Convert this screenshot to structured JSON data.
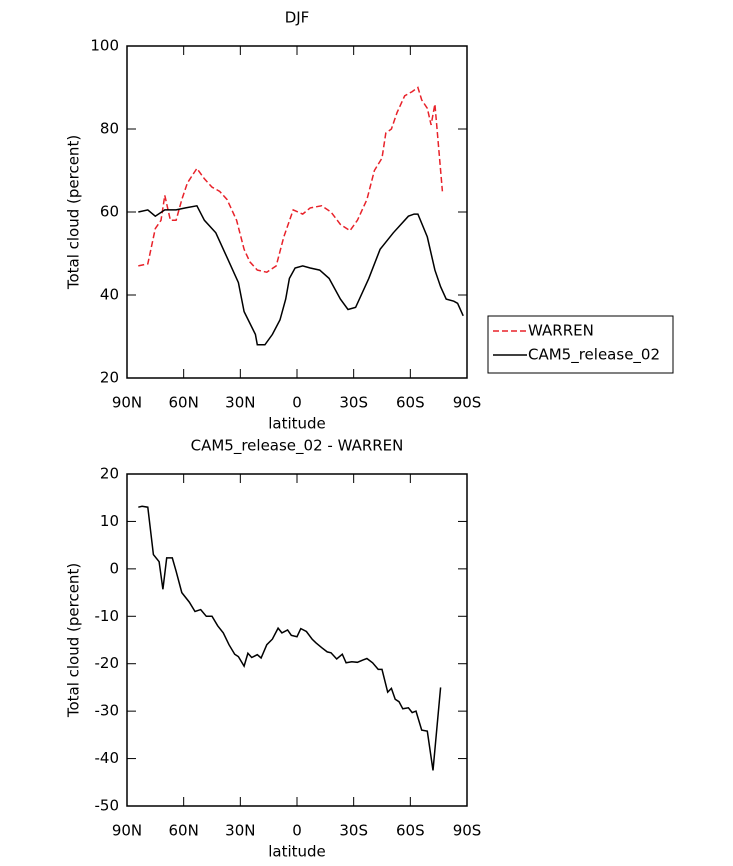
{
  "chart_data": [
    {
      "type": "line",
      "title": "DJF",
      "xlabel": "latitude",
      "ylabel": "Total cloud (percent)",
      "xlim": [
        90,
        -90
      ],
      "ylim": [
        20,
        100
      ],
      "xticks": [
        {
          "value": 90,
          "label": "90N"
        },
        {
          "value": 60,
          "label": "60N"
        },
        {
          "value": 30,
          "label": "30N"
        },
        0,
        {
          "value": -30,
          "label": "30S"
        },
        {
          "value": -60,
          "label": "60S"
        },
        {
          "value": -90,
          "label": "90S"
        }
      ],
      "yticks": [
        20,
        40,
        60,
        80,
        100
      ],
      "legend": "right",
      "series": [
        {
          "name": "WARREN",
          "color": "#e8222a",
          "dashed": true,
          "x": [
            84,
            79,
            75,
            72,
            70,
            67,
            64,
            61,
            58,
            53,
            49,
            45,
            41,
            37,
            32,
            28,
            25,
            21,
            16,
            11,
            7,
            2,
            -3,
            -7,
            -13,
            -18,
            -23,
            -28,
            -32,
            -37,
            -41,
            -45,
            -47,
            -50,
            -53,
            -57,
            -61,
            -64,
            -66,
            -69,
            -71,
            -73,
            -77
          ],
          "values": [
            47,
            47.5,
            56,
            58,
            64,
            58,
            58,
            63,
            67,
            70.5,
            68,
            66,
            65,
            63,
            58,
            51,
            48,
            46,
            45.5,
            47,
            54,
            60.5,
            59.5,
            61,
            61.5,
            60,
            57,
            55.5,
            58,
            63,
            70,
            73,
            79,
            80,
            84,
            88,
            89,
            90,
            87,
            85,
            81,
            86,
            65
          ]
        },
        {
          "name": "CAM5_release_02",
          "color": "#000000",
          "dashed": false,
          "x": [
            84,
            79,
            75,
            70,
            64,
            59,
            53,
            49,
            43,
            37,
            31,
            28,
            22,
            21,
            17,
            13,
            9,
            6,
            4,
            1,
            -3,
            -7,
            -12,
            -17,
            -23,
            -27,
            -31,
            -38,
            -44,
            -51,
            -59,
            -62,
            -64,
            -69,
            -73,
            -76,
            -79,
            -83,
            -85,
            -88
          ],
          "values": [
            60,
            60.5,
            59,
            60.5,
            60.5,
            61,
            61.5,
            58,
            55,
            49,
            43,
            36,
            30.5,
            28,
            28,
            30.5,
            34,
            39,
            44,
            46.5,
            47,
            46.5,
            46,
            44,
            39,
            36.5,
            37,
            44,
            51,
            55,
            59,
            59.5,
            59.5,
            54,
            46,
            42,
            39,
            38.5,
            38,
            35
          ]
        }
      ]
    },
    {
      "type": "line",
      "title": "CAM5_release_02 - WARREN",
      "xlabel": "latitude",
      "ylabel": "Total cloud (percent)",
      "xlim": [
        90,
        -90
      ],
      "ylim": [
        -50,
        20
      ],
      "xticks": [
        {
          "value": 90,
          "label": "90N"
        },
        {
          "value": 60,
          "label": "60N"
        },
        {
          "value": 30,
          "label": "30N"
        },
        0,
        {
          "value": -30,
          "label": "30S"
        },
        {
          "value": -60,
          "label": "60S"
        },
        {
          "value": -90,
          "label": "90S"
        }
      ],
      "yticks": [
        -50,
        -40,
        -30,
        -20,
        -10,
        0,
        10,
        20
      ],
      "series": [
        {
          "color": "#000000",
          "dashed": false,
          "x": [
            84,
            82,
            79,
            76,
            73,
            71,
            69,
            66,
            64,
            61,
            57,
            54,
            51,
            48,
            45,
            42,
            39,
            36,
            33,
            31,
            28,
            26,
            24,
            21,
            19,
            16,
            13,
            10,
            8,
            5,
            3,
            0,
            -2,
            -5,
            -8,
            -10,
            -13,
            -16,
            -18,
            -21,
            -24,
            -26,
            -29,
            -32,
            -35,
            -37,
            -40,
            -43,
            -45,
            -48,
            -50,
            -52,
            -54,
            -56,
            -59,
            -61,
            -63,
            -66,
            -69,
            -72,
            -76
          ],
          "values": [
            13,
            13.2,
            13,
            3,
            1.5,
            -4.3,
            2.3,
            2.3,
            -0.5,
            -5,
            -7,
            -9,
            -8.6,
            -10,
            -10,
            -12,
            -13.5,
            -16,
            -18,
            -18.5,
            -20.5,
            -17.8,
            -18.7,
            -18.1,
            -18.8,
            -16,
            -14.8,
            -12.5,
            -13.5,
            -12.9,
            -14,
            -14.3,
            -12.6,
            -13.2,
            -14.8,
            -15.6,
            -16.6,
            -17.5,
            -17.7,
            -19,
            -18,
            -19.8,
            -19.6,
            -19.7,
            -19.2,
            -18.9,
            -19.8,
            -21.2,
            -21.2,
            -26,
            -25.2,
            -27.5,
            -28,
            -29.5,
            -29.3,
            -30.3,
            -30,
            -34,
            -34.2,
            -42.5,
            -25
          ]
        }
      ]
    }
  ]
}
